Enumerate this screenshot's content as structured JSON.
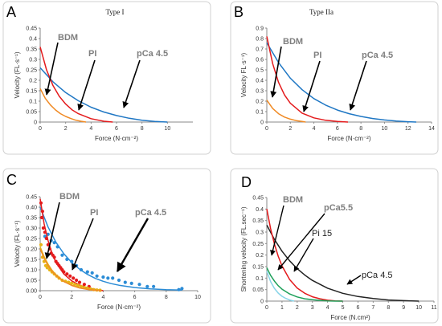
{
  "chart_data": [
    {
      "id": "A",
      "type": "line",
      "panel_label": "A",
      "title": "Type I",
      "xlabel": "Force (N·cm⁻²)",
      "ylabel": "Velocity (FL·s⁻¹)",
      "xlim": [
        0,
        12
      ],
      "ylim": [
        0,
        0.45
      ],
      "xticks": [
        "0",
        "2",
        "4",
        "6",
        "8",
        "10"
      ],
      "yticks": [
        "0",
        "0.05",
        "0.1",
        "0.15",
        "0.2",
        "0.25",
        "0.3",
        "0.35",
        "0.4",
        "0.45"
      ],
      "grid": false,
      "series": [
        {
          "color": "#1f77c4",
          "x": [
            0,
            1,
            2,
            3,
            4,
            5,
            6,
            7,
            8,
            9,
            10
          ],
          "y": [
            0.26,
            0.193,
            0.141,
            0.102,
            0.071,
            0.048,
            0.031,
            0.018,
            0.009,
            0.003,
            0
          ]
        },
        {
          "color": "#e41a1c",
          "x": [
            0,
            0.5,
            1,
            1.5,
            2,
            2.5,
            3,
            4,
            5,
            5.7
          ],
          "y": [
            0.36,
            0.25,
            0.176,
            0.123,
            0.086,
            0.059,
            0.04,
            0.016,
            0.004,
            0
          ]
        },
        {
          "color": "#f08a24",
          "x": [
            0,
            0.4,
            0.8,
            1.2,
            1.6,
            2,
            2.4,
            2.8,
            3.2,
            3.6
          ],
          "y": [
            0.16,
            0.114,
            0.082,
            0.058,
            0.04,
            0.027,
            0.017,
            0.009,
            0.004,
            0
          ]
        }
      ],
      "annotations": [
        {
          "text": "BDM",
          "style": "grey"
        },
        {
          "text": "PI",
          "style": "grey"
        },
        {
          "text": "pCa 4.5",
          "style": "grey"
        }
      ]
    },
    {
      "id": "B",
      "type": "line",
      "panel_label": "B",
      "title": "Type IIa",
      "xlabel": "Force (N·cm⁻²)",
      "ylabel": "Velocity FL·s⁻¹)",
      "xlim": [
        0,
        14
      ],
      "ylim": [
        0,
        0.9
      ],
      "xticks": [
        "0",
        "2",
        "4",
        "6",
        "8",
        "10",
        "12",
        "14"
      ],
      "yticks": [
        "0",
        "0.1",
        "0.2",
        "0.3",
        "0.4",
        "0.5",
        "0.6",
        "0.7",
        "0.8",
        "0.9"
      ],
      "grid": false,
      "series": [
        {
          "color": "#1f77c4",
          "x": [
            0,
            1,
            2,
            3,
            4,
            5,
            6,
            7,
            8,
            9,
            10,
            11,
            12,
            12.7
          ],
          "y": [
            0.76,
            0.57,
            0.42,
            0.31,
            0.225,
            0.162,
            0.115,
            0.08,
            0.054,
            0.034,
            0.02,
            0.01,
            0.003,
            0
          ]
        },
        {
          "color": "#e41a1c",
          "x": [
            0,
            0.5,
            1,
            1.5,
            2,
            3,
            4,
            5,
            6,
            6.9
          ],
          "y": [
            0.82,
            0.56,
            0.38,
            0.26,
            0.18,
            0.085,
            0.04,
            0.017,
            0.005,
            0
          ]
        },
        {
          "color": "#f08a24",
          "x": [
            0,
            0.5,
            1,
            1.5,
            2,
            2.5,
            3,
            3.3
          ],
          "y": [
            0.21,
            0.13,
            0.08,
            0.048,
            0.028,
            0.014,
            0.005,
            0
          ]
        }
      ],
      "annotations": [
        {
          "text": "BDM",
          "style": "grey"
        },
        {
          "text": "PI",
          "style": "grey"
        },
        {
          "text": "pCa 4.5",
          "style": "grey"
        }
      ]
    },
    {
      "id": "C",
      "type": "scatter",
      "panel_label": "C",
      "title": "",
      "xlabel": "Force (N·cm⁻²)",
      "ylabel": "Velocity (FL·s⁻¹)",
      "xlim": [
        0,
        10
      ],
      "ylim": [
        0,
        0.45
      ],
      "xticks": [
        "0",
        "2",
        "4",
        "6",
        "8",
        "10"
      ],
      "yticks": [
        "0.00",
        "0.05",
        "0.10",
        "0.15",
        "0.20",
        "0.25",
        "0.30",
        "0.35",
        "0.40",
        "0.45"
      ],
      "grid": false,
      "series": [
        {
          "color": "#2b8cd6",
          "x": [
            0,
            0.5,
            1,
            1.5,
            2,
            2.5,
            3,
            3.5,
            4,
            4.5,
            5,
            6,
            7,
            8,
            9
          ],
          "y": [
            0.4,
            0.305,
            0.232,
            0.177,
            0.135,
            0.103,
            0.078,
            0.059,
            0.045,
            0.034,
            0.026,
            0.015,
            0.009,
            0.005,
            0.003
          ],
          "points_x": [
            0.3,
            0.5,
            0.7,
            0.9,
            1.1,
            1.4,
            1.7,
            2.0,
            2.3,
            2.6,
            3.0,
            3.3,
            3.6,
            4.0,
            4.3,
            4.6,
            5.0,
            5.4,
            5.8,
            6.3,
            6.8,
            7.2,
            8.8,
            9.0
          ],
          "points_y": [
            0.26,
            0.27,
            0.24,
            0.23,
            0.21,
            0.17,
            0.15,
            0.14,
            0.12,
            0.1,
            0.09,
            0.085,
            0.07,
            0.065,
            0.06,
            0.06,
            0.05,
            0.04,
            0.035,
            0.03,
            0.02,
            0.02,
            0.005,
            0.01
          ]
        },
        {
          "color": "#e41a1c",
          "x": [
            0,
            0.25,
            0.5,
            0.75,
            1,
            1.5,
            2,
            2.5,
            3,
            3.5,
            4
          ],
          "y": [
            0.44,
            0.32,
            0.24,
            0.18,
            0.135,
            0.08,
            0.047,
            0.027,
            0.014,
            0.006,
            0
          ],
          "points_x": [
            0.05,
            0.1,
            0.15,
            0.2,
            0.3,
            0.4,
            0.5,
            0.6,
            0.7,
            0.8,
            0.9,
            1.0,
            1.1,
            1.2,
            1.3,
            1.4,
            1.5,
            1.7,
            1.9,
            2.1,
            2.3,
            2.5,
            2.8,
            3.1
          ],
          "points_y": [
            0.42,
            0.35,
            0.38,
            0.3,
            0.28,
            0.25,
            0.22,
            0.2,
            0.18,
            0.17,
            0.16,
            0.14,
            0.13,
            0.12,
            0.11,
            0.1,
            0.09,
            0.08,
            0.07,
            0.06,
            0.05,
            0.04,
            0.03,
            0.02
          ]
        },
        {
          "color": "#e7b416",
          "x": [
            0,
            0.25,
            0.5,
            0.75,
            1,
            1.5,
            2,
            2.5,
            3,
            3.5,
            3.9
          ],
          "y": [
            0.21,
            0.163,
            0.127,
            0.098,
            0.076,
            0.045,
            0.026,
            0.014,
            0.007,
            0.002,
            0
          ],
          "points_x": [
            0.05,
            0.15,
            0.25,
            0.35,
            0.45,
            0.6,
            0.75,
            0.9,
            1.05,
            1.2,
            1.4,
            1.6,
            1.8,
            2.0,
            2.2,
            2.4,
            2.6,
            2.8,
            3.0,
            3.2,
            3.4,
            3.6,
            3.8
          ],
          "points_y": [
            0.22,
            0.16,
            0.14,
            0.12,
            0.11,
            0.1,
            0.09,
            0.08,
            0.07,
            0.06,
            0.05,
            0.045,
            0.04,
            0.035,
            0.03,
            0.025,
            0.02,
            0.015,
            0.012,
            0.008,
            0.005,
            0.003,
            0.002
          ]
        },
        {
          "color": "#f08a24",
          "x": [
            0,
            0.25,
            0.5,
            0.75,
            1,
            1.5,
            2,
            2.5,
            3,
            3.5,
            3.9
          ],
          "y": [
            0.2,
            0.155,
            0.12,
            0.094,
            0.073,
            0.044,
            0.025,
            0.013,
            0.006,
            0.002,
            0
          ],
          "points_x": [],
          "points_y": []
        }
      ],
      "annotations": [
        {
          "text": "BDM",
          "style": "grey"
        },
        {
          "text": "PI",
          "style": "grey"
        },
        {
          "text": "pCa 4.5",
          "style": "grey"
        }
      ]
    },
    {
      "id": "D",
      "type": "line",
      "panel_label": "D",
      "title": "",
      "xlabel": "Force (N.cm²)",
      "ylabel": "Shortening velocity (FL.sec⁻¹)",
      "xlim": [
        0,
        11
      ],
      "ylim": [
        0,
        0.45
      ],
      "xticks": [
        "0",
        "1",
        "2",
        "3",
        "4",
        "5",
        "6",
        "7",
        "8",
        "9",
        "10",
        "11"
      ],
      "yticks": [
        "0",
        "0.05",
        "0.1",
        "0.15",
        "0.2",
        "0.25",
        "0.3",
        "0.35",
        "0.4",
        "0.45"
      ],
      "grid": false,
      "series": [
        {
          "color": "#222222",
          "x": [
            0,
            0.5,
            1,
            1.5,
            2,
            2.5,
            3,
            4,
            5,
            6,
            7,
            8,
            9,
            10
          ],
          "y": [
            0.33,
            0.268,
            0.217,
            0.175,
            0.141,
            0.113,
            0.09,
            0.056,
            0.034,
            0.02,
            0.011,
            0.005,
            0.002,
            0
          ]
        },
        {
          "color": "#e41a1c",
          "x": [
            0,
            0.25,
            0.5,
            0.75,
            1,
            1.5,
            2,
            2.5,
            3,
            3.5,
            4,
            4.5,
            5
          ],
          "y": [
            0.4,
            0.315,
            0.248,
            0.195,
            0.153,
            0.094,
            0.057,
            0.034,
            0.019,
            0.01,
            0.004,
            0.001,
            0
          ]
        },
        {
          "color": "#1ea05a",
          "x": [
            0,
            0.25,
            0.5,
            0.75,
            1,
            1.5,
            2,
            2.5,
            3,
            3.5,
            4,
            4.5,
            5
          ],
          "y": [
            0.145,
            0.112,
            0.087,
            0.067,
            0.052,
            0.031,
            0.018,
            0.01,
            0.006,
            0.003,
            0.001,
            0,
            0
          ]
        },
        {
          "color": "#88d4e8",
          "x": [
            0,
            0.25,
            0.5,
            0.75,
            1,
            1.25,
            1.5,
            1.8
          ],
          "y": [
            0.13,
            0.085,
            0.055,
            0.035,
            0.021,
            0.012,
            0.005,
            0
          ]
        }
      ],
      "annotations": [
        {
          "text": "BDM",
          "style": "grey"
        },
        {
          "text": "pCa5.5",
          "style": "grey"
        },
        {
          "text": "Pi 15",
          "style": "dark"
        },
        {
          "text": "pCa 4.5",
          "style": "dark"
        }
      ]
    }
  ]
}
